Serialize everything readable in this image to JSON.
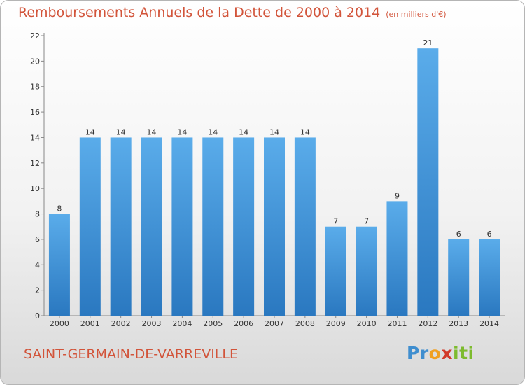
{
  "page": {
    "title": "Remboursements Annuels de la Dette de 2000 à 2014",
    "unit": "(en milliers d'€)",
    "city": "SAINT-GERMAIN-DE-VARREVILLE",
    "logo": {
      "letters": [
        "P",
        "r",
        "o",
        "x",
        "i",
        "t",
        "i"
      ],
      "colors": [
        "#3f8ecf",
        "#3f8ecf",
        "#f0a020",
        "#d23a2a",
        "#7dbb2e",
        "#7dbb2e",
        "#7dbb2e"
      ]
    }
  },
  "chart_data": {
    "type": "bar",
    "title": "Remboursements Annuels de la Dette de 2000 à 2014",
    "xlabel": "",
    "ylabel": "",
    "categories": [
      "2000",
      "2001",
      "2002",
      "2003",
      "2004",
      "2005",
      "2006",
      "2007",
      "2008",
      "2009",
      "2010",
      "2011",
      "2012",
      "2013",
      "2014"
    ],
    "values": [
      8,
      14,
      14,
      14,
      14,
      14,
      14,
      14,
      14,
      7,
      7,
      9,
      21,
      6,
      6
    ],
    "ylim": [
      0,
      22
    ],
    "yticks": [
      0,
      2,
      4,
      6,
      8,
      10,
      12,
      14,
      16,
      18,
      20,
      22
    ],
    "grid": false,
    "bar_color": "#3b8fd6"
  }
}
